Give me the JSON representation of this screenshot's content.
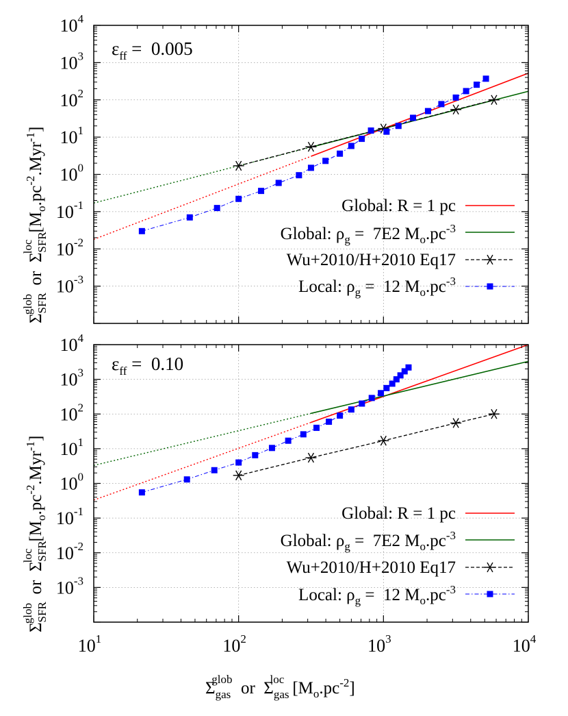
{
  "chart_data": [
    {
      "type": "line",
      "annotation": "0.005",
      "x_scale": "log",
      "y_scale": "log",
      "xlim": [
        10,
        10000
      ],
      "ylim": [
        0.0001,
        10000
      ],
      "grid": true,
      "legend_position": "lower-right",
      "series": [
        {
          "name": "Global: R = 1 pc",
          "color": "#ff0000",
          "style": "solid-dotted",
          "x": [
            10,
            10000
          ],
          "y": [
            0.018,
            520
          ],
          "solid_from_x": 316
        },
        {
          "name": "Global: ρg =  7E2 Mo.pc-3",
          "color": "#006400",
          "style": "solid-dotted",
          "x": [
            10,
            10000
          ],
          "y": [
            0.17,
            170
          ],
          "solid_from_x": 316
        },
        {
          "name": "Wu+2010/H+2010 Eq17",
          "color": "#000000",
          "style": "dashed-stars",
          "x": [
            100,
            316,
            1000,
            3162,
            5800
          ],
          "y": [
            1.7,
            5.5,
            17,
            55,
            100
          ]
        },
        {
          "name": "Local: ρg =  12 Mo.pc-3",
          "color": "#0000ff",
          "style": "dotdash-squares",
          "x": [
            21.5,
            46,
            71,
            100,
            143,
            189,
            261,
            316,
            398,
            500,
            600,
            708,
            820,
            1050,
            1270,
            1600,
            2030,
            2510,
            3160,
            3720,
            4400,
            5100
          ],
          "y": [
            0.03,
            0.07,
            0.125,
            0.22,
            0.36,
            0.59,
            0.95,
            1.5,
            2.3,
            3.6,
            5.8,
            9,
            15,
            14,
            20,
            33,
            50,
            77,
            115,
            172,
            255,
            370
          ]
        }
      ]
    },
    {
      "type": "line",
      "annotation": "0.10",
      "x_scale": "log",
      "y_scale": "log",
      "xlim": [
        10,
        10000
      ],
      "ylim": [
        0.0001,
        10000
      ],
      "grid": true,
      "legend_position": "lower-right",
      "series": [
        {
          "name": "Global: R = 1 pc",
          "color": "#ff0000",
          "style": "solid-dotted",
          "x": [
            10,
            10000
          ],
          "y": [
            0.33,
            10000
          ],
          "solid_from_x": 316
        },
        {
          "name": "Global: ρg =  7E2 Mo.pc-3",
          "color": "#006400",
          "style": "solid-dotted",
          "x": [
            10,
            10000
          ],
          "y": [
            3.3,
            3300
          ],
          "solid_from_x": 316
        },
        {
          "name": "Wu+2010/H+2010 Eq17",
          "color": "#000000",
          "style": "dashed-stars",
          "x": [
            100,
            316,
            1000,
            3162,
            5800
          ],
          "y": [
            1.7,
            5.5,
            17,
            55,
            100
          ]
        },
        {
          "name": "Local: ρg =  12 Mo.pc-3",
          "color": "#0000ff",
          "style": "dotdash-squares",
          "x": [
            21.5,
            44,
            68,
            100,
            130,
            170,
            220,
            280,
            345,
            420,
            500,
            600,
            710,
            830,
            960,
            1050,
            1150,
            1230,
            1310,
            1400,
            1490
          ],
          "y": [
            0.55,
            1.3,
            2.4,
            4,
            6.5,
            10.5,
            17,
            26,
            40,
            60,
            90,
            135,
            200,
            290,
            400,
            560,
            750,
            1000,
            1300,
            1700,
            2200
          ]
        }
      ]
    }
  ],
  "axes": {
    "x_ticks": [
      {
        "base": "10",
        "exp": "1"
      },
      {
        "base": "10",
        "exp": "2"
      },
      {
        "base": "10",
        "exp": "3"
      },
      {
        "base": "10",
        "exp": "4"
      }
    ],
    "y_ticks": [
      {
        "base": "10",
        "exp": "4"
      },
      {
        "base": "10",
        "exp": "3"
      },
      {
        "base": "10",
        "exp": "2"
      },
      {
        "base": "10",
        "exp": "1"
      },
      {
        "base": "10",
        "exp": "0"
      },
      {
        "base": "10",
        "exp": "-1"
      },
      {
        "base": "10",
        "exp": "-2"
      },
      {
        "base": "10",
        "exp": "-3"
      }
    ],
    "ylabel": {
      "sigma1": "Σ",
      "sub1": "SFR",
      "sup1": "glob",
      "or": "or",
      "sigma2": "Σ",
      "sub2": "SFR",
      "sup2": "loc",
      "units_a": "[M",
      "units_sub": "o",
      "units_b": ".pc",
      "units_sup1": "-2",
      "units_c": ".Myr",
      "units_sup2": "-1",
      "units_d": "]"
    },
    "xlabel": {
      "sigma1": "Σ",
      "sub1": "gas",
      "sup1": "glob",
      "or": "or",
      "sigma2": "Σ",
      "sub2": "gas",
      "sup2": "loc",
      "units_a": "[M",
      "units_sub": "o",
      "units_b": ".pc",
      "units_sup": "-2",
      "units_c": "]"
    },
    "eps_symbol": "ε",
    "eps_sub": "ff",
    "eps_eq": " = "
  },
  "legend": {
    "r": {
      "text": "Global: R = 1 pc"
    },
    "rho7": {
      "a": "Global: ρ",
      "sub": "g",
      "b": " =  7E2 M",
      "sub2": "o",
      "c": ".pc",
      "sup": "-3"
    },
    "wu": {
      "text": "Wu+2010/H+2010 Eq17"
    },
    "local": {
      "a": "Local: ρ",
      "sub": "g",
      "b": " =  12 M",
      "sub2": "o",
      "c": ".pc",
      "sup": "-3"
    }
  }
}
